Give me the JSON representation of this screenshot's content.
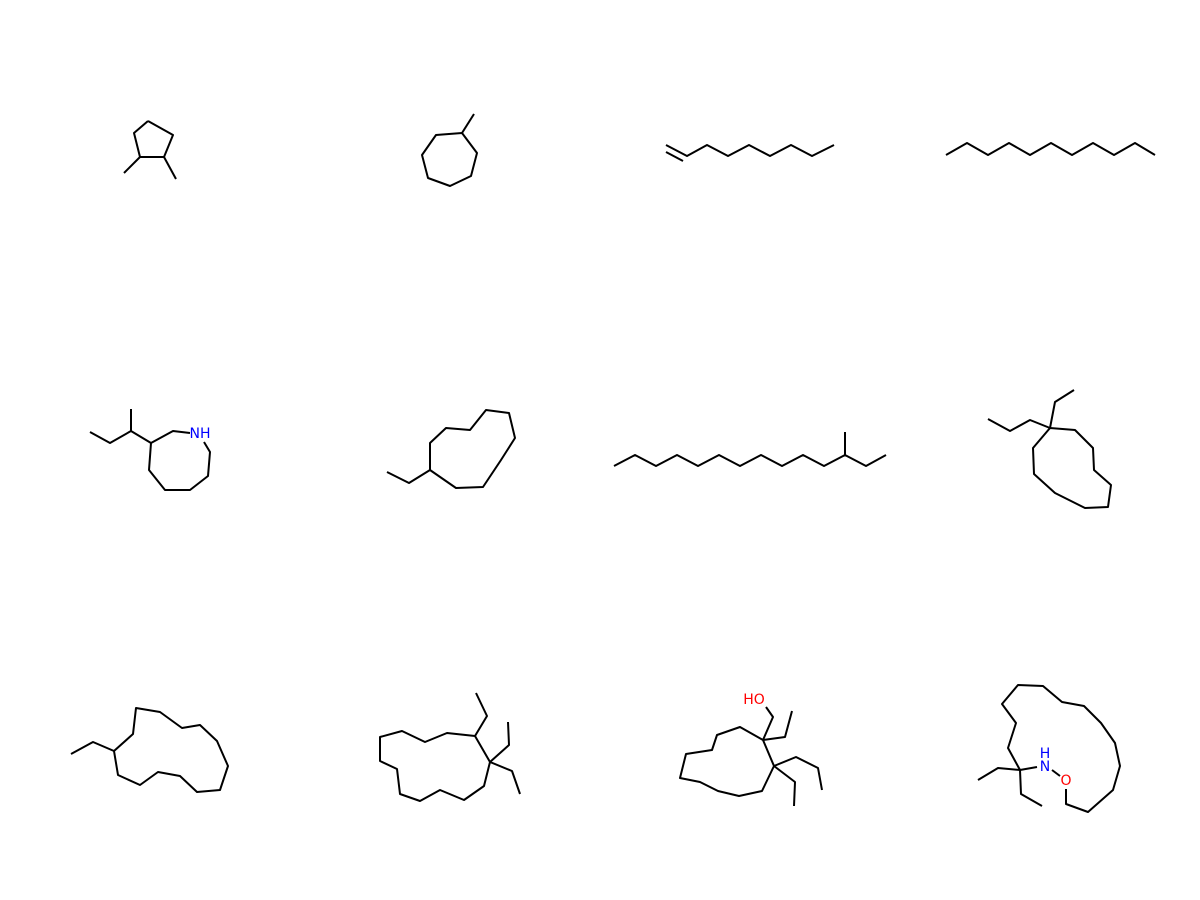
{
  "atom_labels": [
    "NH",
    "HO",
    "H",
    "N",
    "O"
  ]
}
